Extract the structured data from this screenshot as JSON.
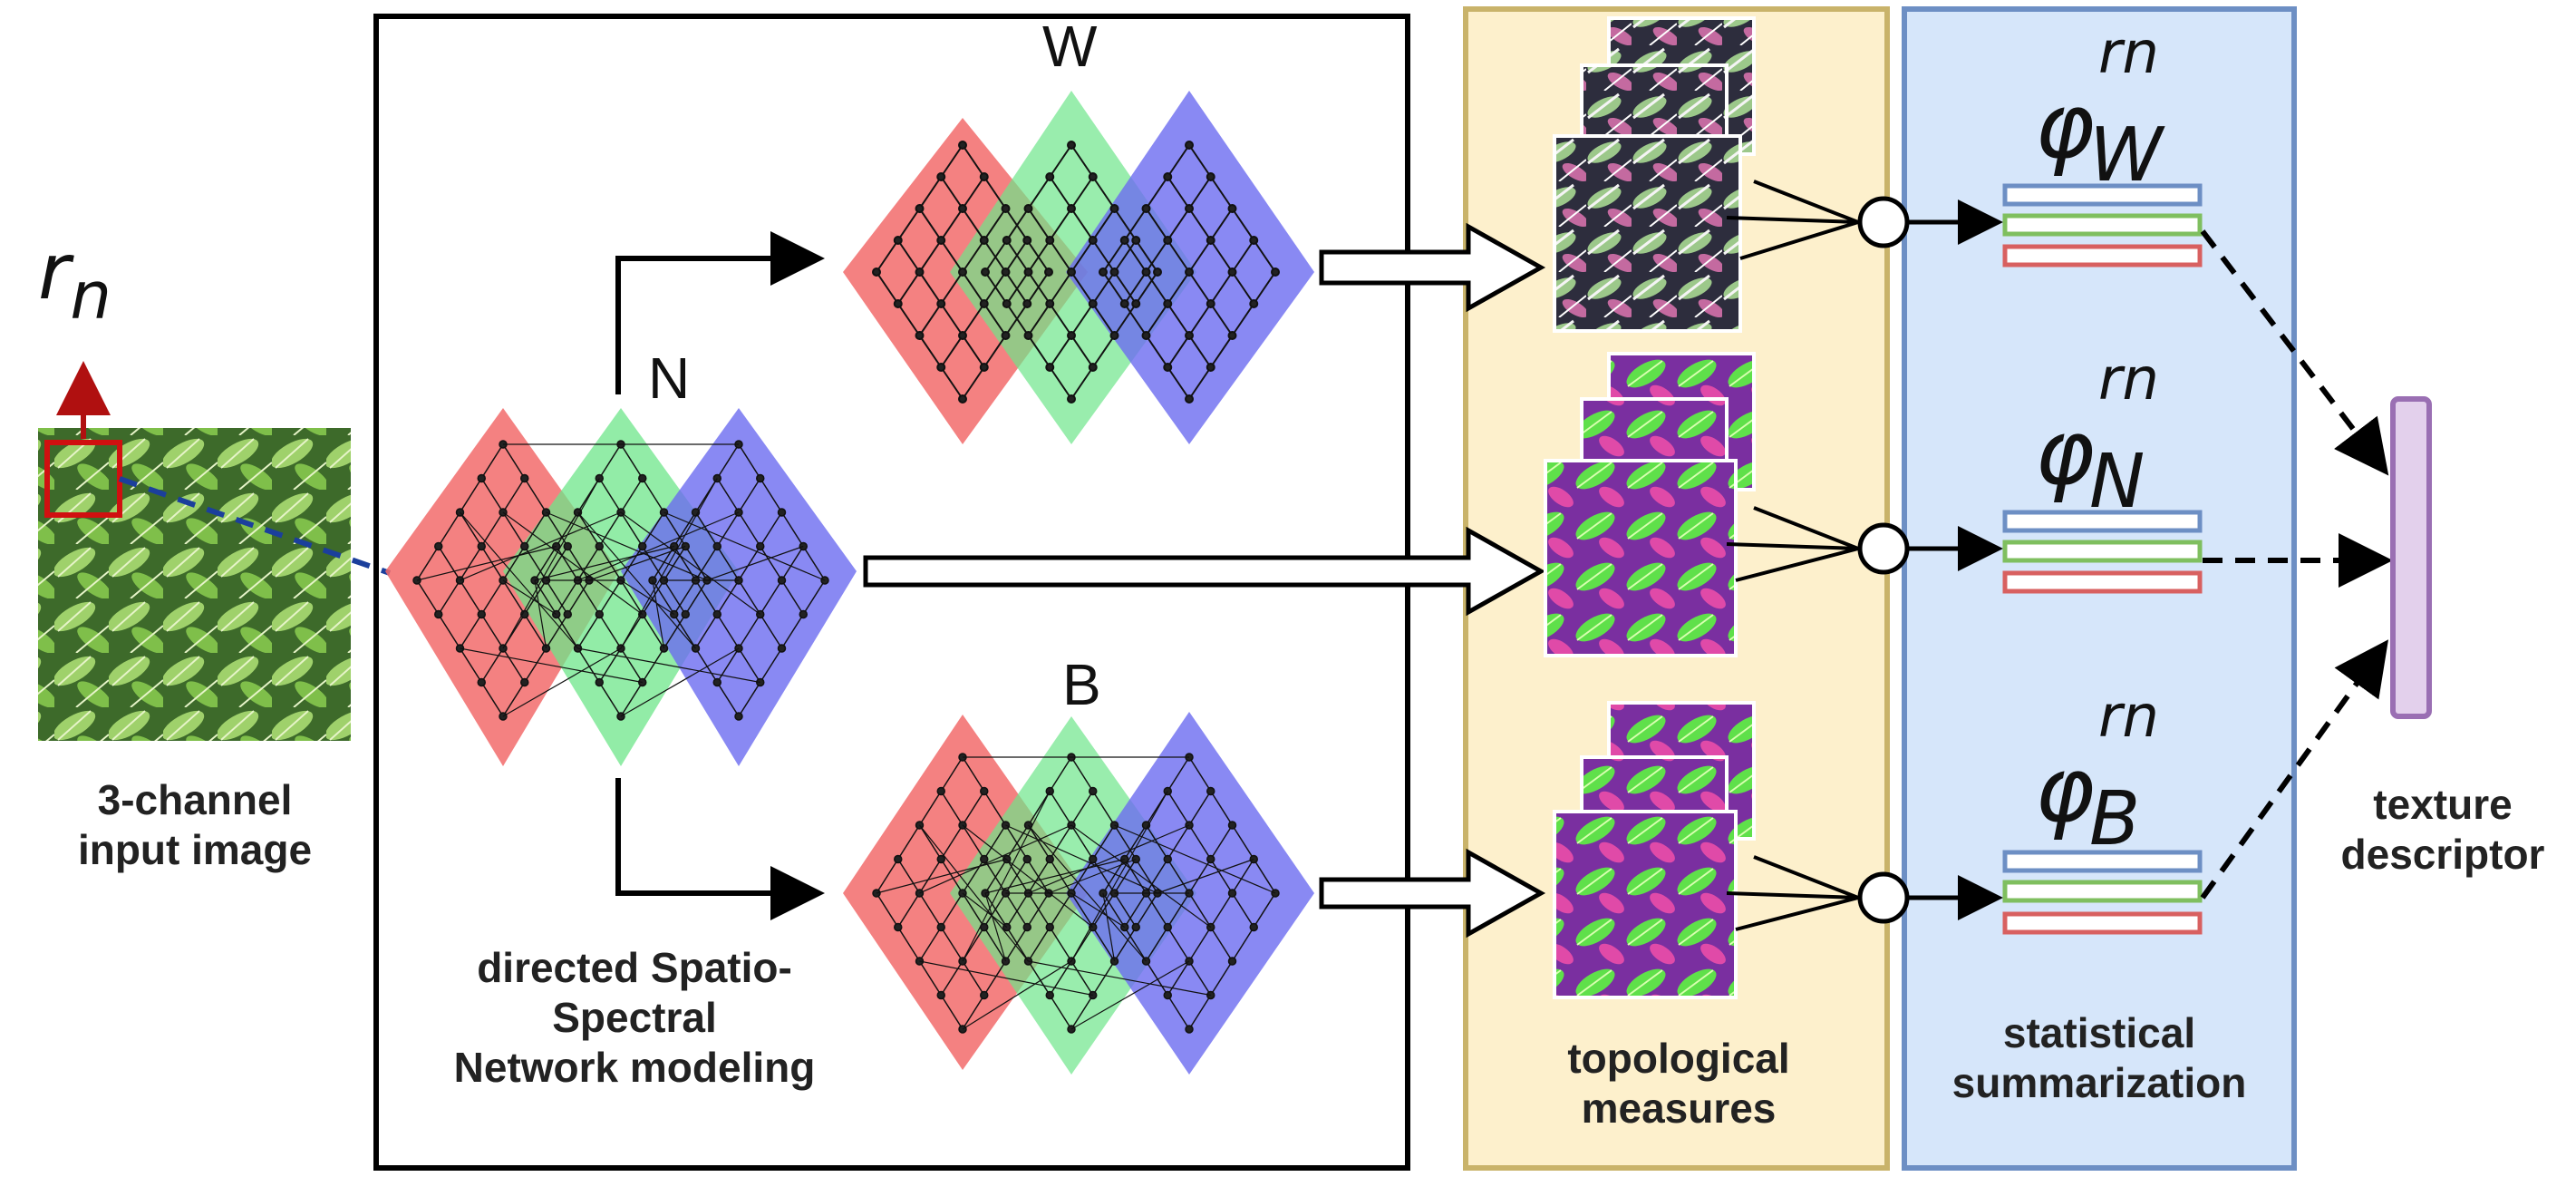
{
  "input": {
    "rn_r": "r",
    "rn_n": "n",
    "caption_line1": "3-channel",
    "caption_line2": "input image"
  },
  "network": {
    "label_W": "W",
    "label_N": "N",
    "label_B": "B",
    "caption_line1": "directed Spatio-",
    "caption_line2": "Spectral",
    "caption_line3": "Network modeling"
  },
  "topological": {
    "caption_line1": "topological",
    "caption_line2": "measures"
  },
  "statistical": {
    "caption_line1": "statistical",
    "caption_line2": "summarization",
    "phi_W": {
      "sym": "φ",
      "sub": "W",
      "sup": "rn"
    },
    "phi_N": {
      "sym": "φ",
      "sub": "N",
      "sup": "rn"
    },
    "phi_B": {
      "sym": "φ",
      "sub": "B",
      "sup": "rn"
    }
  },
  "descriptor": {
    "caption_line1": "texture",
    "caption_line2": "descriptor"
  },
  "colors": {
    "red_channel": "#f26b6b",
    "green_channel": "#6ee58a",
    "blue_channel": "#6b6bf0",
    "topo_fill": "#fdf0cc",
    "topo_border": "#c9b36a",
    "stat_fill": "#d6e6fa",
    "stat_border": "#6d8fc4",
    "descriptor_fill": "#e3d0ec",
    "descriptor_border": "#9a6fb3",
    "bar_blue": "#6d8fc4",
    "bar_green": "#7fbf5f",
    "bar_red": "#d86060",
    "dashed_link": "#1b3f9c",
    "rn_arrow": "#b01010"
  }
}
